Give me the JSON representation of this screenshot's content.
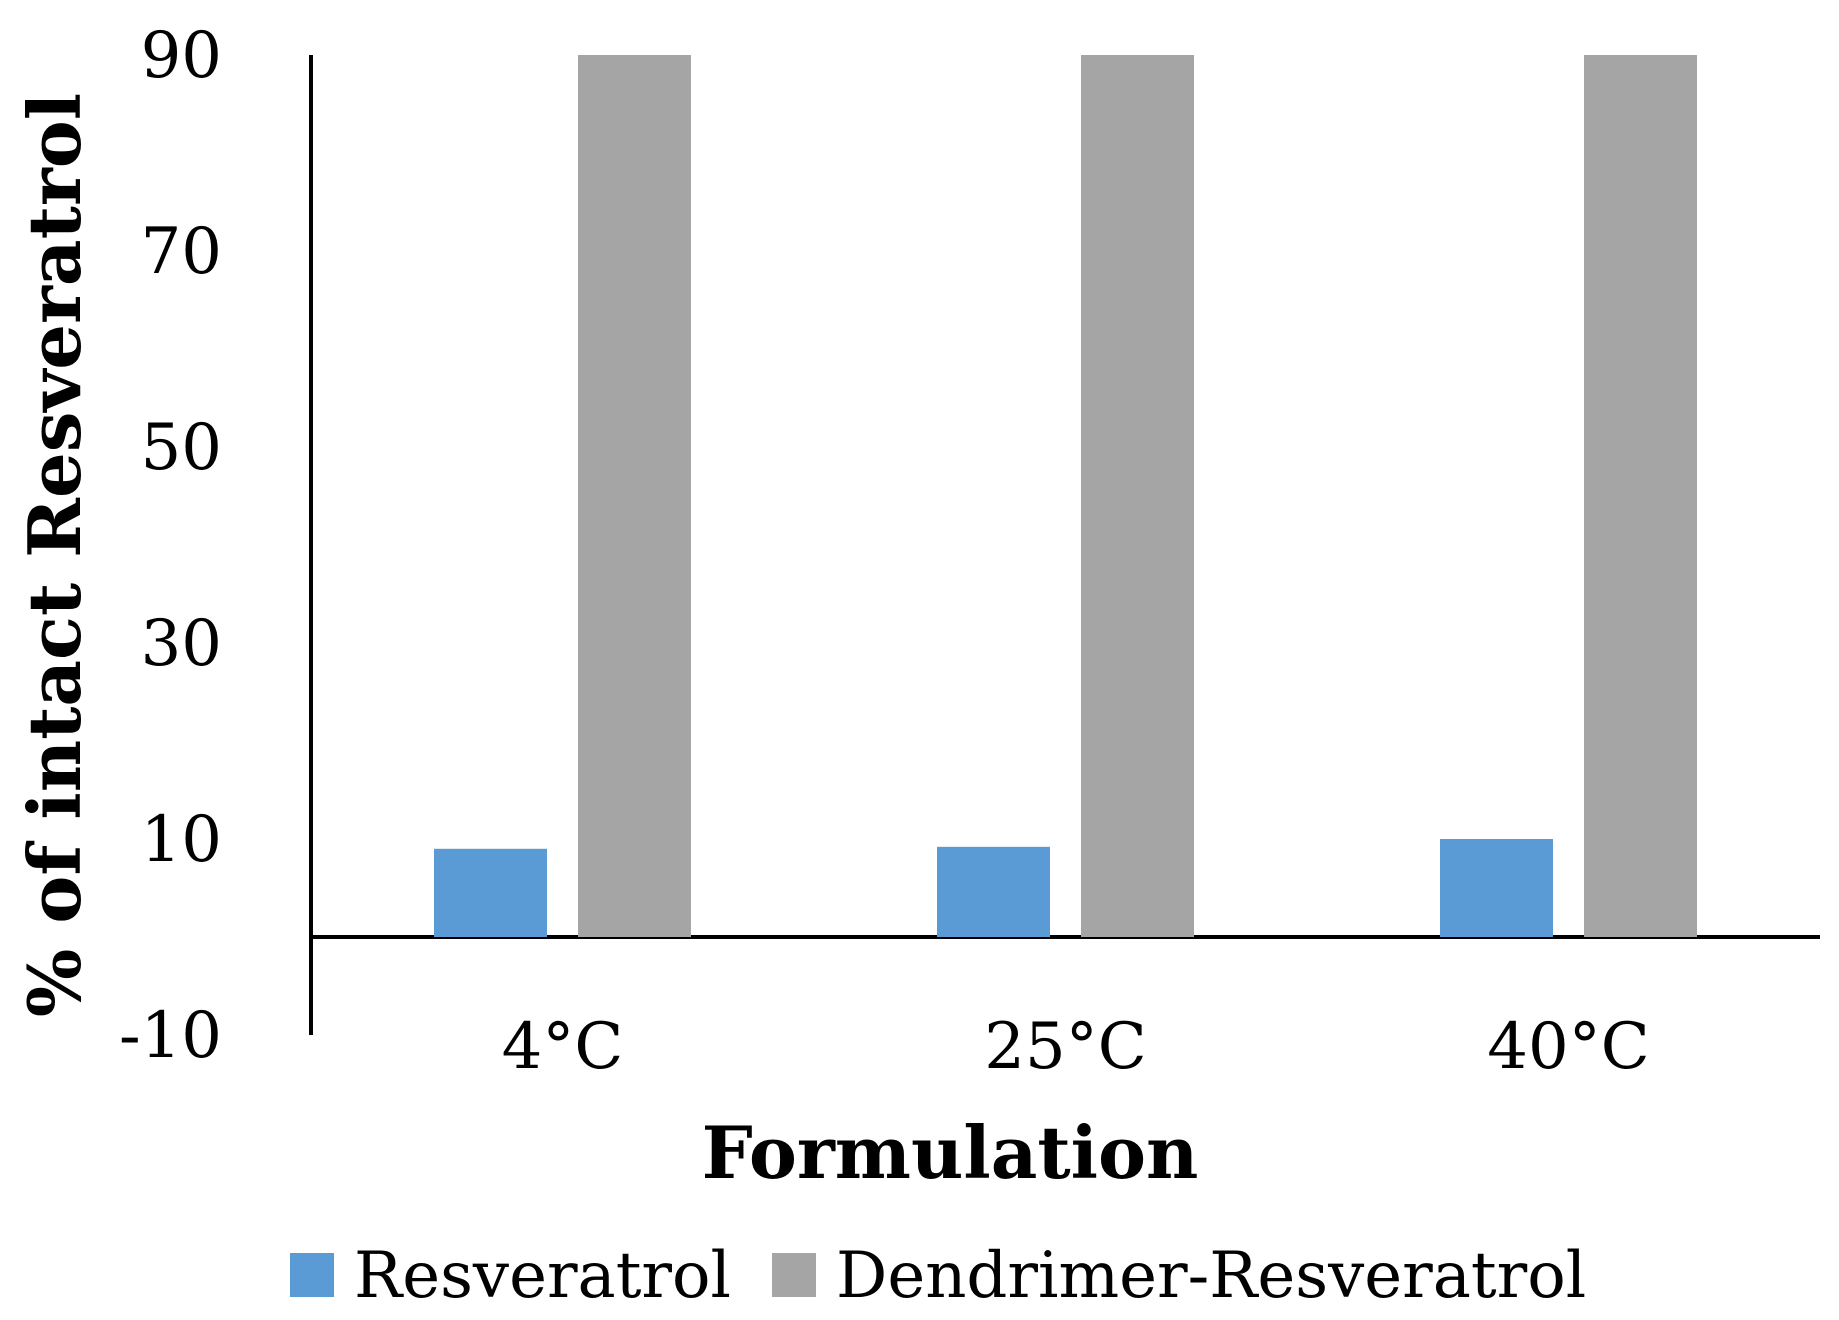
{
  "chart_data": {
    "type": "bar",
    "categories": [
      "4°C",
      "25°C",
      "40°C"
    ],
    "series": [
      {
        "name": "Resveratrol",
        "values": [
          9,
          9.2,
          10
        ],
        "color": "#5B9BD5"
      },
      {
        "name": "Dendrimer-Resveratrol",
        "values": [
          90,
          90,
          90
        ],
        "color": "#A5A5A5"
      }
    ],
    "xlabel": "Formulation",
    "ylabel": "% of intact Resveratrol",
    "ylim": [
      -10,
      90
    ],
    "yticks": [
      "90",
      "70",
      "50",
      "30",
      "10",
      "-10"
    ],
    "grid": false,
    "legend_position": "bottom"
  }
}
